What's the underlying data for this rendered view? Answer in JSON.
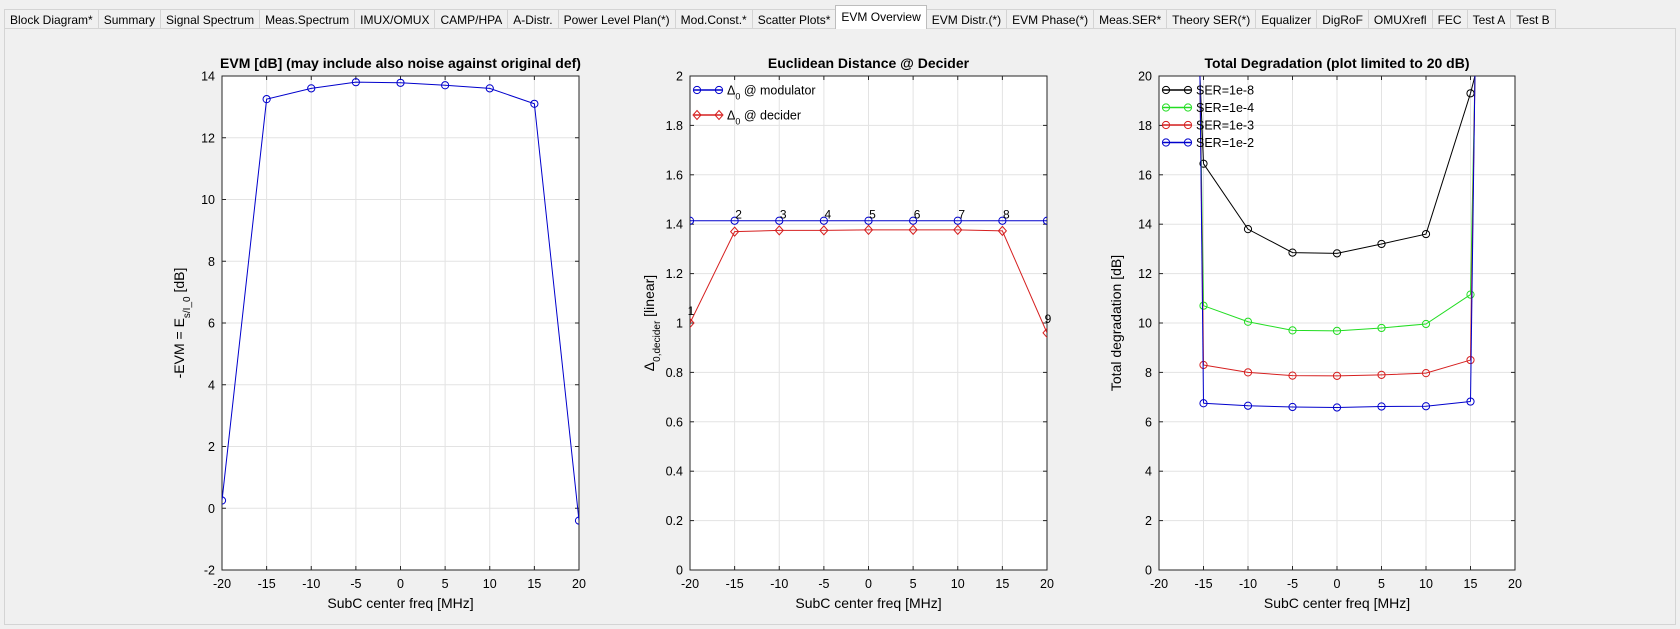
{
  "tabs": [
    {
      "label": "Block Diagram*",
      "active": false
    },
    {
      "label": "Summary",
      "active": false
    },
    {
      "label": "Signal Spectrum",
      "active": false
    },
    {
      "label": "Meas.Spectrum",
      "active": false
    },
    {
      "label": "IMUX/OMUX",
      "active": false
    },
    {
      "label": "CAMP/HPA",
      "active": false
    },
    {
      "label": "A-Distr.",
      "active": false
    },
    {
      "label": "Power Level Plan(*)",
      "active": false
    },
    {
      "label": "Mod.Const.*",
      "active": false
    },
    {
      "label": "Scatter Plots*",
      "active": false
    },
    {
      "label": "EVM Overview",
      "active": true
    },
    {
      "label": "EVM Distr.(*)",
      "active": false
    },
    {
      "label": "EVM Phase(*)",
      "active": false
    },
    {
      "label": "Meas.SER*",
      "active": false
    },
    {
      "label": "Theory SER(*)",
      "active": false
    },
    {
      "label": "Equalizer",
      "active": false
    },
    {
      "label": "DigRoF",
      "active": false
    },
    {
      "label": "OMUXrefl",
      "active": false
    },
    {
      "label": "FEC",
      "active": false
    },
    {
      "label": "Test A",
      "active": false
    },
    {
      "label": "Test B",
      "active": false
    }
  ],
  "chart_data": [
    {
      "type": "line",
      "title": "EVM [dB]   (may include also noise against original def)",
      "xlabel": "SubC center freq [MHz]",
      "ylabel": "-EVM = E_s/I_0 [dB]",
      "xlim": [
        -20,
        20
      ],
      "ylim": [
        -2,
        14
      ],
      "xticks": [
        -20,
        -15,
        -10,
        -5,
        0,
        5,
        10,
        15,
        20
      ],
      "yticks": [
        -2,
        0,
        2,
        4,
        6,
        8,
        10,
        12,
        14
      ],
      "grid": true,
      "series": [
        {
          "color": "#0000cc",
          "marker": "circle",
          "x": [
            -20,
            -15,
            -10,
            -5,
            0,
            5,
            10,
            15,
            20
          ],
          "y": [
            0.25,
            13.25,
            13.6,
            13.8,
            13.78,
            13.7,
            13.6,
            13.1,
            -0.4
          ]
        }
      ]
    },
    {
      "type": "line",
      "title": "Euclidean Distance @ Decider",
      "xlabel": "SubC center freq [MHz]",
      "ylabel": "Δ_0,decider [linear]",
      "xlim": [
        -20,
        20
      ],
      "ylim": [
        0,
        2
      ],
      "xticks": [
        -20,
        -15,
        -10,
        -5,
        0,
        5,
        10,
        15,
        20
      ],
      "yticks": [
        0,
        0.2,
        0.4,
        0.6,
        0.8,
        1,
        1.2,
        1.4,
        1.6,
        1.8,
        2
      ],
      "grid": true,
      "legend": "top-left",
      "series": [
        {
          "name": "Δ_0 @ modulator",
          "color": "#0000cc",
          "marker": "circle",
          "x": [
            -20,
            -15,
            -10,
            -5,
            0,
            5,
            10,
            15,
            20
          ],
          "y": [
            1.414,
            1.414,
            1.414,
            1.414,
            1.414,
            1.414,
            1.414,
            1.414,
            1.414
          ]
        },
        {
          "name": "Δ_0 @ decider",
          "color": "#d62020",
          "marker": "diamond",
          "x": [
            -20,
            -15,
            -10,
            -5,
            0,
            5,
            10,
            15,
            20
          ],
          "y": [
            1.0,
            1.37,
            1.375,
            1.375,
            1.377,
            1.377,
            1.377,
            1.373,
            0.96
          ]
        }
      ],
      "point_labels": [
        "1",
        "2",
        "3",
        "4",
        "5",
        "6",
        "7",
        "8",
        "9"
      ]
    },
    {
      "type": "line",
      "title": "Total Degradation (plot limited to 20 dB)",
      "xlabel": "SubC center freq [MHz]",
      "ylabel": "Total degradation [dB]",
      "xlim": [
        -20,
        20
      ],
      "ylim": [
        0,
        20
      ],
      "xticks": [
        -20,
        -15,
        -10,
        -5,
        0,
        5,
        10,
        15,
        20
      ],
      "yticks": [
        0,
        2,
        4,
        6,
        8,
        10,
        12,
        14,
        16,
        18,
        20
      ],
      "grid": true,
      "legend": "top-left",
      "series": [
        {
          "name": "SER=1e-8",
          "color": "#000000",
          "marker": "circle",
          "x": [
            -15,
            -10,
            -5,
            0,
            5,
            10,
            15
          ],
          "y": [
            16.45,
            13.8,
            12.85,
            12.82,
            13.2,
            13.6,
            19.3
          ]
        },
        {
          "name": "SER=1e-4",
          "color": "#22dd22",
          "marker": "circle",
          "x": [
            -15,
            -10,
            -5,
            0,
            5,
            10,
            15
          ],
          "y": [
            10.7,
            10.05,
            9.7,
            9.68,
            9.8,
            9.96,
            11.15
          ]
        },
        {
          "name": "SER=1e-3",
          "color": "#d62020",
          "marker": "circle",
          "x": [
            -15,
            -10,
            -5,
            0,
            5,
            10,
            15
          ],
          "y": [
            8.3,
            8.0,
            7.87,
            7.86,
            7.9,
            7.97,
            8.5
          ]
        },
        {
          "name": "SER=1e-2",
          "color": "#0000cc",
          "marker": "circle",
          "x": [
            -15,
            -10,
            -5,
            0,
            5,
            10,
            15
          ],
          "y": [
            6.75,
            6.65,
            6.6,
            6.58,
            6.62,
            6.63,
            6.82
          ]
        }
      ]
    }
  ]
}
